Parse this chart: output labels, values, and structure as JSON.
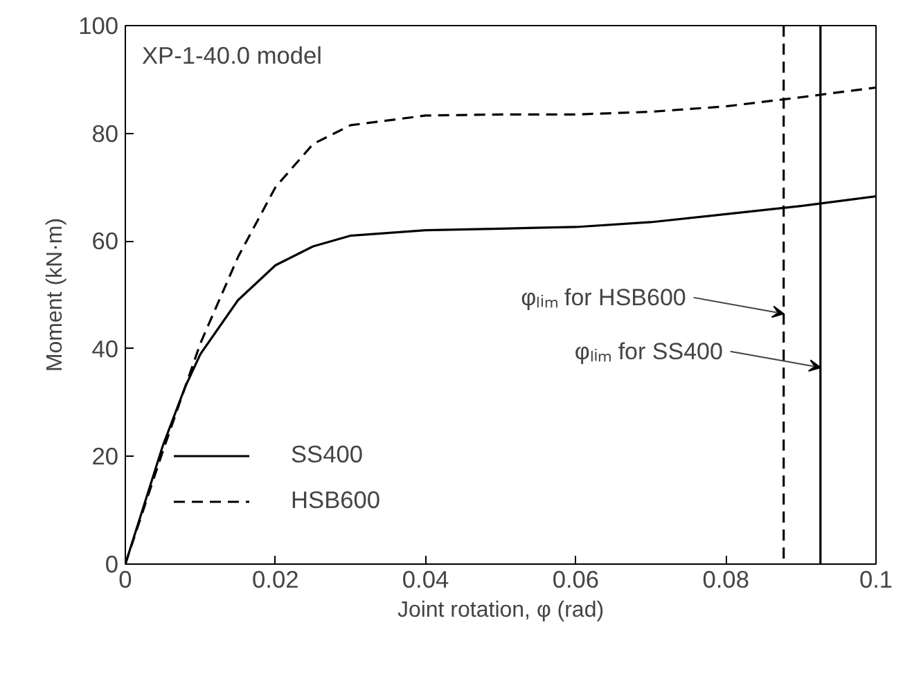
{
  "chart_data": {
    "type": "line",
    "xlabel": "Joint rotation, φ (rad)",
    "ylabel": "Moment (kN·m)",
    "annotations": [
      "XP-1-40.0 model"
    ],
    "xlim": [
      0,
      0.1
    ],
    "ylim": [
      0,
      100
    ],
    "xticks": [
      0,
      0.02,
      0.04,
      0.06,
      0.08,
      0.1
    ],
    "yticks": [
      0,
      20,
      40,
      60,
      80,
      100
    ],
    "grid": false,
    "legend": "bottom left",
    "series": [
      {
        "name": "SS400",
        "color": "#000000",
        "line_style": "solid",
        "x": [
          0,
          0.005,
          0.008,
          0.01,
          0.015,
          0.02,
          0.025,
          0.03,
          0.04,
          0.05,
          0.06,
          0.07,
          0.08,
          0.09,
          0.1
        ],
        "values": [
          0,
          22,
          33,
          39,
          49,
          55.5,
          59,
          61,
          62,
          62.3,
          62.6,
          63.5,
          65,
          66.5,
          68.3
        ]
      },
      {
        "name": "HSB600",
        "color": "#000000",
        "line_style": "dashed",
        "x": [
          0,
          0.005,
          0.01,
          0.015,
          0.02,
          0.025,
          0.03,
          0.04,
          0.05,
          0.06,
          0.07,
          0.08,
          0.09,
          0.1
        ],
        "values": [
          0,
          21,
          41,
          57,
          70,
          78,
          81.5,
          83.3,
          83.5,
          83.5,
          84,
          85,
          86.7,
          88.5
        ]
      }
    ],
    "ref_lines": [
      {
        "axis": "x",
        "value": 0.0877,
        "label": "φₗᵢₘ for HSB600",
        "color": "#000000",
        "line_style": "dashed"
      },
      {
        "axis": "x",
        "value": 0.0926,
        "label": "φₗᵢₘ for SS400",
        "color": "#000000",
        "line_style": "solid"
      }
    ]
  }
}
